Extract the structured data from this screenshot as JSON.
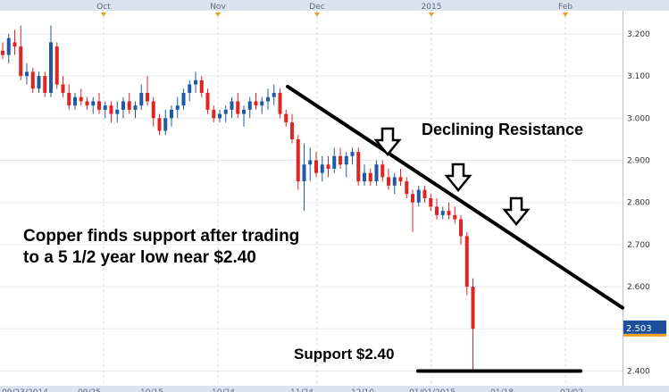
{
  "chart_data": {
    "type": "candlestick",
    "title": "",
    "xlabel": "",
    "ylabel": "",
    "ylim": [
      2.365,
      3.255
    ],
    "grid": true,
    "month_labels": [
      "Oct",
      "Nov",
      "Dec",
      "2015",
      "Feb"
    ],
    "date_labels": [
      "09/23/2014",
      "09/25",
      "10/15",
      "10/24",
      "11/24",
      "12/10",
      "01/01/2015",
      "01/18",
      "02/02"
    ],
    "y_ticks": [
      "3.200",
      "3.100",
      "3.000",
      "2.900",
      "2.800",
      "2.700",
      "2.600",
      "2.500",
      "2.400"
    ],
    "y_tick_values": [
      3.2,
      3.1,
      3.0,
      2.9,
      2.8,
      2.7,
      2.6,
      2.5,
      2.4
    ],
    "last_price": "2.503",
    "annotations": {
      "resistance": "Declining Resistance",
      "support_note_line1": "Copper finds support after trading",
      "support_note_line2": "to a 5 1/2 year low near $2.40",
      "support_label": "Support $2.40"
    },
    "trendline": {
      "name": "Declining Resistance",
      "start": 3.075,
      "end": 2.55
    },
    "support_level": 2.4,
    "colors": {
      "up": "#1f5aa6",
      "down": "#e02424",
      "axis_bg": "#dbe3ee",
      "marker": "#f0a020",
      "last_price_bg": "#1c4f9a"
    },
    "candles": [
      {
        "o": 3.16,
        "h": 3.18,
        "l": 3.14,
        "c": 3.15
      },
      {
        "o": 3.15,
        "h": 3.2,
        "l": 3.13,
        "c": 3.19
      },
      {
        "o": 3.18,
        "h": 3.21,
        "l": 3.15,
        "c": 3.17
      },
      {
        "o": 3.17,
        "h": 3.22,
        "l": 3.09,
        "c": 3.1
      },
      {
        "o": 3.1,
        "h": 3.13,
        "l": 3.08,
        "c": 3.11
      },
      {
        "o": 3.11,
        "h": 3.12,
        "l": 3.06,
        "c": 3.07
      },
      {
        "o": 3.07,
        "h": 3.11,
        "l": 3.06,
        "c": 3.1
      },
      {
        "o": 3.1,
        "h": 3.11,
        "l": 3.05,
        "c": 3.06
      },
      {
        "o": 3.06,
        "h": 3.22,
        "l": 3.05,
        "c": 3.18
      },
      {
        "o": 3.17,
        "h": 3.18,
        "l": 3.07,
        "c": 3.08
      },
      {
        "o": 3.08,
        "h": 3.1,
        "l": 3.05,
        "c": 3.06
      },
      {
        "o": 3.06,
        "h": 3.08,
        "l": 3.02,
        "c": 3.03
      },
      {
        "o": 3.03,
        "h": 3.06,
        "l": 3.02,
        "c": 3.05
      },
      {
        "o": 3.05,
        "h": 3.07,
        "l": 3.03,
        "c": 3.04
      },
      {
        "o": 3.04,
        "h": 3.05,
        "l": 3.02,
        "c": 3.03
      },
      {
        "o": 3.03,
        "h": 3.05,
        "l": 3.01,
        "c": 3.04
      },
      {
        "o": 3.04,
        "h": 3.06,
        "l": 3.01,
        "c": 3.02
      },
      {
        "o": 3.02,
        "h": 3.04,
        "l": 3.0,
        "c": 3.03
      },
      {
        "o": 3.03,
        "h": 3.04,
        "l": 2.99,
        "c": 3.01
      },
      {
        "o": 3.01,
        "h": 3.04,
        "l": 2.99,
        "c": 3.02
      },
      {
        "o": 3.02,
        "h": 3.05,
        "l": 3.0,
        "c": 3.04
      },
      {
        "o": 3.04,
        "h": 3.06,
        "l": 3.01,
        "c": 3.02
      },
      {
        "o": 3.02,
        "h": 3.04,
        "l": 3.0,
        "c": 3.03
      },
      {
        "o": 3.03,
        "h": 3.08,
        "l": 3.02,
        "c": 3.06
      },
      {
        "o": 3.06,
        "h": 3.1,
        "l": 3.03,
        "c": 3.04
      },
      {
        "o": 3.04,
        "h": 3.05,
        "l": 2.98,
        "c": 3.0
      },
      {
        "o": 3.0,
        "h": 3.01,
        "l": 2.96,
        "c": 2.97
      },
      {
        "o": 2.97,
        "h": 3.02,
        "l": 2.96,
        "c": 3.0
      },
      {
        "o": 3.0,
        "h": 3.03,
        "l": 2.98,
        "c": 3.02
      },
      {
        "o": 3.02,
        "h": 3.05,
        "l": 3.0,
        "c": 3.03
      },
      {
        "o": 3.03,
        "h": 3.07,
        "l": 3.02,
        "c": 3.06
      },
      {
        "o": 3.06,
        "h": 3.09,
        "l": 3.04,
        "c": 3.08
      },
      {
        "o": 3.08,
        "h": 3.11,
        "l": 3.06,
        "c": 3.09
      },
      {
        "o": 3.09,
        "h": 3.1,
        "l": 3.05,
        "c": 3.06
      },
      {
        "o": 3.06,
        "h": 3.07,
        "l": 3.01,
        "c": 3.02
      },
      {
        "o": 3.02,
        "h": 3.03,
        "l": 2.99,
        "c": 3.0
      },
      {
        "o": 3.0,
        "h": 3.02,
        "l": 2.99,
        "c": 3.01
      },
      {
        "o": 3.01,
        "h": 3.03,
        "l": 2.99,
        "c": 3.02
      },
      {
        "o": 3.02,
        "h": 3.05,
        "l": 3.0,
        "c": 3.04
      },
      {
        "o": 3.04,
        "h": 3.06,
        "l": 3.0,
        "c": 3.01
      },
      {
        "o": 3.01,
        "h": 3.03,
        "l": 2.98,
        "c": 3.02
      },
      {
        "o": 3.02,
        "h": 3.05,
        "l": 3.0,
        "c": 3.04
      },
      {
        "o": 3.04,
        "h": 3.06,
        "l": 3.02,
        "c": 3.03
      },
      {
        "o": 3.03,
        "h": 3.05,
        "l": 3.01,
        "c": 3.04
      },
      {
        "o": 3.04,
        "h": 3.07,
        "l": 3.02,
        "c": 3.05
      },
      {
        "o": 3.05,
        "h": 3.08,
        "l": 3.03,
        "c": 3.06
      },
      {
        "o": 3.06,
        "h": 3.07,
        "l": 3.0,
        "c": 3.01
      },
      {
        "o": 3.01,
        "h": 3.02,
        "l": 2.98,
        "c": 2.99
      },
      {
        "o": 2.99,
        "h": 3.01,
        "l": 2.94,
        "c": 2.95
      },
      {
        "o": 2.95,
        "h": 2.96,
        "l": 2.83,
        "c": 2.85
      },
      {
        "o": 2.85,
        "h": 2.94,
        "l": 2.78,
        "c": 2.89
      },
      {
        "o": 2.89,
        "h": 2.93,
        "l": 2.85,
        "c": 2.9
      },
      {
        "o": 2.9,
        "h": 2.92,
        "l": 2.86,
        "c": 2.87
      },
      {
        "o": 2.87,
        "h": 2.91,
        "l": 2.85,
        "c": 2.89
      },
      {
        "o": 2.89,
        "h": 2.91,
        "l": 2.86,
        "c": 2.88
      },
      {
        "o": 2.88,
        "h": 2.93,
        "l": 2.87,
        "c": 2.91
      },
      {
        "o": 2.91,
        "h": 2.93,
        "l": 2.88,
        "c": 2.89
      },
      {
        "o": 2.89,
        "h": 2.92,
        "l": 2.86,
        "c": 2.91
      },
      {
        "o": 2.91,
        "h": 2.93,
        "l": 2.89,
        "c": 2.92
      },
      {
        "o": 2.92,
        "h": 2.93,
        "l": 2.84,
        "c": 2.85
      },
      {
        "o": 2.85,
        "h": 2.89,
        "l": 2.84,
        "c": 2.87
      },
      {
        "o": 2.87,
        "h": 2.88,
        "l": 2.84,
        "c": 2.85
      },
      {
        "o": 2.85,
        "h": 2.9,
        "l": 2.84,
        "c": 2.89
      },
      {
        "o": 2.89,
        "h": 2.9,
        "l": 2.85,
        "c": 2.86
      },
      {
        "o": 2.86,
        "h": 2.88,
        "l": 2.83,
        "c": 2.84
      },
      {
        "o": 2.84,
        "h": 2.87,
        "l": 2.82,
        "c": 2.86
      },
      {
        "o": 2.86,
        "h": 2.88,
        "l": 2.84,
        "c": 2.85
      },
      {
        "o": 2.85,
        "h": 2.86,
        "l": 2.81,
        "c": 2.82
      },
      {
        "o": 2.82,
        "h": 2.83,
        "l": 2.73,
        "c": 2.8
      },
      {
        "o": 2.8,
        "h": 2.84,
        "l": 2.79,
        "c": 2.83
      },
      {
        "o": 2.83,
        "h": 2.84,
        "l": 2.8,
        "c": 2.81
      },
      {
        "o": 2.81,
        "h": 2.82,
        "l": 2.78,
        "c": 2.79
      },
      {
        "o": 2.79,
        "h": 2.81,
        "l": 2.76,
        "c": 2.77
      },
      {
        "o": 2.77,
        "h": 2.79,
        "l": 2.76,
        "c": 2.78
      },
      {
        "o": 2.78,
        "h": 2.8,
        "l": 2.76,
        "c": 2.77
      },
      {
        "o": 2.77,
        "h": 2.79,
        "l": 2.75,
        "c": 2.76
      },
      {
        "o": 2.76,
        "h": 2.77,
        "l": 2.7,
        "c": 2.72
      },
      {
        "o": 2.72,
        "h": 2.73,
        "l": 2.58,
        "c": 2.6
      },
      {
        "o": 2.6,
        "h": 2.62,
        "l": 2.4,
        "c": 2.5
      }
    ]
  }
}
